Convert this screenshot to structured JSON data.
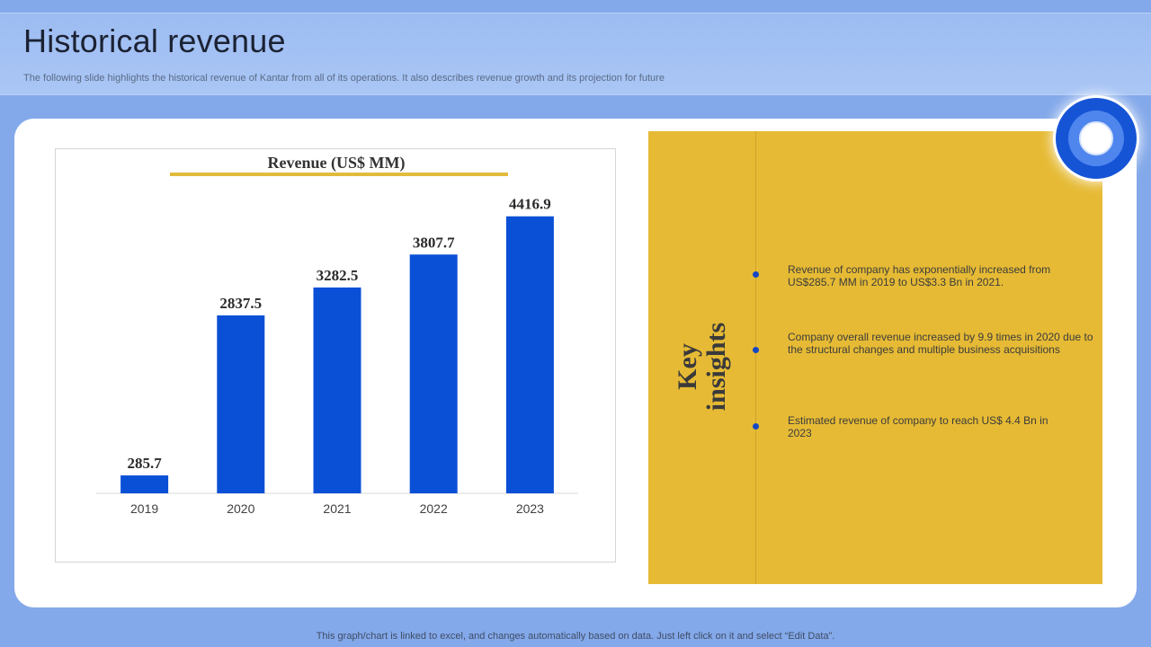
{
  "header": {
    "title": "Historical revenue",
    "subtitle": "The following slide highlights the historical revenue  of Kantar from all of its operations.  It also describes revenue  growth and its projection for future"
  },
  "chart_data": {
    "type": "bar",
    "title": "Revenue (US$ MM)",
    "categories": [
      "2019",
      "2020",
      "2021",
      "2022",
      "2023"
    ],
    "values": [
      285.7,
      2837.5,
      3282.5,
      3807.7,
      4416.9
    ],
    "value_labels": [
      "285.7",
      "2837.5",
      "3282.5",
      "3807.7",
      "4416.9"
    ],
    "xlabel": "",
    "ylabel": "",
    "ylim": [
      0,
      4800
    ],
    "grid": false,
    "legend": "none",
    "bar_color": "#0a50d6",
    "title_underline_color": "#e1bb3c"
  },
  "insights": {
    "title": "Key\ninsights",
    "items": [
      "Revenue of company has exponentially increased from US$285.7 MM  in 2019 to US$3.3 Bn in 2021.",
      "Company overall revenue increased by 9.9 times  in 2020 due to the structural  changes and multiple business acquisitions",
      "Estimated revenue  of company to reach US$ 4.4 Bn in 2023"
    ]
  },
  "footer": {
    "note": "This graph/chart is linked to excel,  and changes automatically based on data. Just left click on it and select “Edit Data”."
  },
  "colors": {
    "page_background": "#84a9ea",
    "panel_gold": "#e6ba34",
    "accent_blue": "#0a50d6"
  }
}
